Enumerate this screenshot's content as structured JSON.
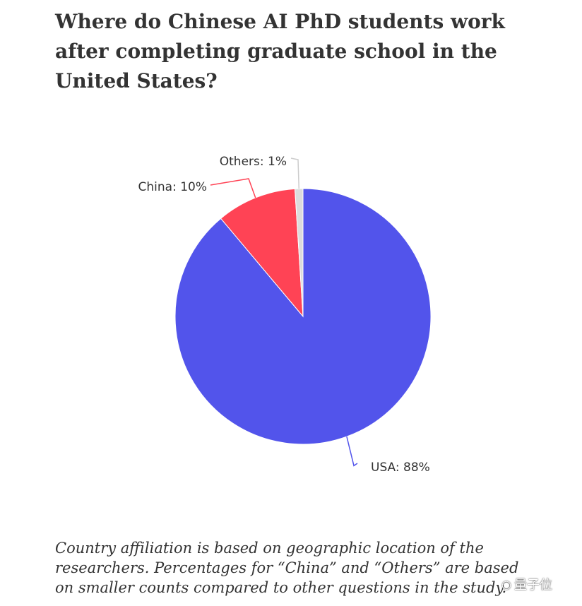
{
  "title": "Where do Chinese AI PhD students work after completing graduate school in the United States?",
  "caption": "Country affiliation is based on geographic location of the researchers. Percentages for “China” and “Others” are based on smaller counts compared to other questions in the study.",
  "watermark": {
    "text": "量子位",
    "icon": "wechat-icon"
  },
  "chart_data": {
    "type": "pie",
    "title": "Where do Chinese AI PhD students work after completing graduate school in the United States?",
    "slices": [
      {
        "label": "USA",
        "value": 88,
        "display": "USA: 88%",
        "color": "#5254eb"
      },
      {
        "label": "China",
        "value": 10,
        "display": "China: 10%",
        "color": "#ff4355"
      },
      {
        "label": "Others",
        "value": 1,
        "display": "Others: 1%",
        "color": "#dcdcdc"
      }
    ]
  }
}
